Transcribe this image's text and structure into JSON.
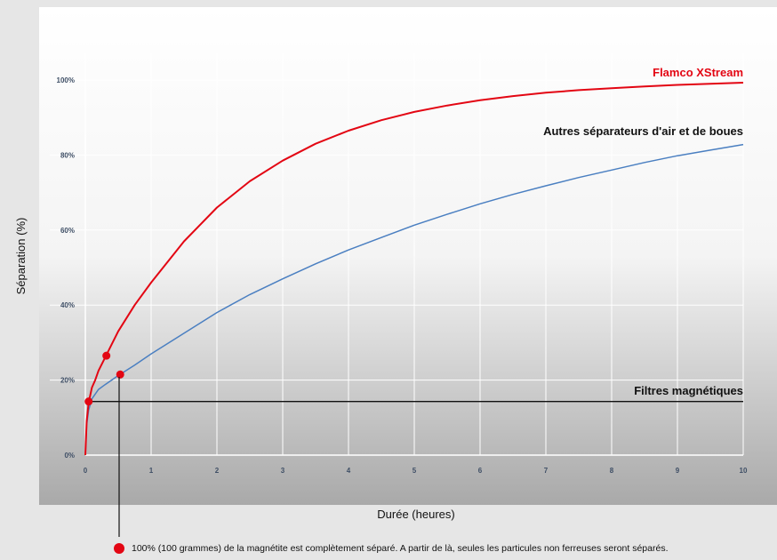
{
  "chart_data": {
    "type": "line",
    "title": "",
    "xlabel": "Durée (heures)",
    "ylabel": "Séparation  (%)",
    "xlim": [
      0,
      10
    ],
    "ylim": [
      0,
      100
    ],
    "x_ticks": [
      "0",
      "1",
      "2",
      "3",
      "4",
      "5",
      "6",
      "7",
      "8",
      "9",
      "10"
    ],
    "y_ticks": [
      "0%",
      "20%",
      "40%",
      "60%",
      "80%",
      "100%"
    ],
    "grid": true,
    "series": [
      {
        "name": "Flamco XStream",
        "color": "#e30613",
        "x": [
          0,
          0.02,
          0.05,
          0.1,
          0.15,
          0.2,
          0.3,
          0.5,
          0.75,
          1,
          1.5,
          2,
          2.5,
          3,
          3.5,
          4,
          4.5,
          5,
          5.5,
          6,
          6.5,
          7,
          7.5,
          8,
          8.5,
          9,
          9.5,
          10
        ],
        "y": [
          0,
          9,
          14,
          18,
          20,
          22.5,
          26,
          33,
          40,
          46,
          57,
          66,
          73,
          78.5,
          83,
          86.5,
          89.3,
          91.5,
          93.2,
          94.6,
          95.7,
          96.6,
          97.3,
          97.8,
          98.3,
          98.7,
          99,
          99.3
        ]
      },
      {
        "name": "Autres séparateurs d'air et de boues",
        "color": "#4a7fc1",
        "x": [
          0,
          0.02,
          0.05,
          0.1,
          0.2,
          0.3,
          0.5,
          0.75,
          1,
          1.5,
          2,
          2.5,
          3,
          3.5,
          4,
          4.5,
          5,
          5.5,
          6,
          6.5,
          7,
          7.5,
          8,
          8.5,
          9,
          9.5,
          10
        ],
        "y": [
          0,
          8,
          12,
          15,
          17.5,
          18.8,
          21.2,
          24,
          27,
          32.5,
          38,
          42.8,
          47,
          51,
          54.7,
          58,
          61.3,
          64.2,
          67,
          69.5,
          71.8,
          74,
          76,
          78,
          79.8,
          81.3,
          82.8
        ]
      },
      {
        "name": "Filtres magnétiques",
        "color": "#111111",
        "x": [
          0.05,
          10
        ],
        "y": [
          14.3,
          14.3
        ]
      }
    ],
    "markers": [
      {
        "x": 0.05,
        "y": 14.3
      },
      {
        "x": 0.32,
        "y": 26.5
      },
      {
        "x": 0.53,
        "y": 21.5
      }
    ],
    "footnote": "100% (100 grammes) de la magnétite est complètement séparé. A partir de là, seules les particules non ferreuses seront séparés."
  }
}
